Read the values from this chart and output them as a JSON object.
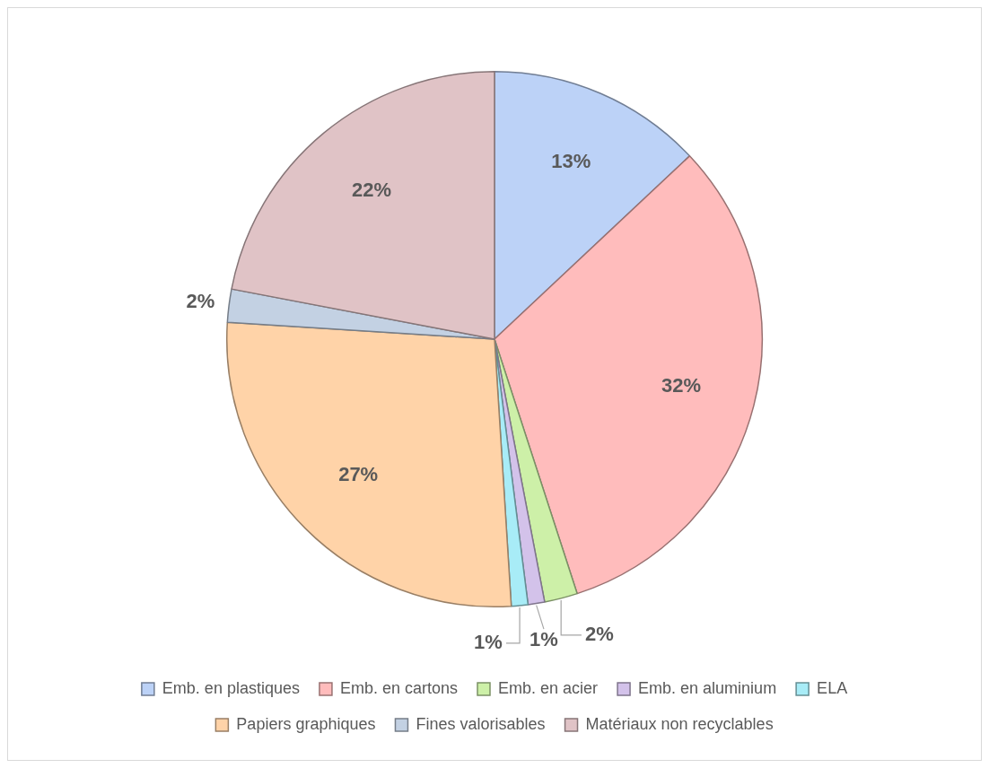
{
  "chart_data": {
    "type": "pie",
    "categories": [
      "Emb. en plastiques",
      "Emb. en cartons",
      "Emb. en acier",
      "Emb. en aluminium",
      "ELA",
      "Papiers graphiques",
      "Fines valorisables",
      "Matériaux non recyclables"
    ],
    "values": [
      13,
      32,
      2,
      1,
      1,
      27,
      2,
      22
    ],
    "colors": [
      "#bcd2f7",
      "#ffbcbc",
      "#cdf0a8",
      "#d3c2ea",
      "#a8ecf7",
      "#ffd3a8",
      "#c3d1e3",
      "#e0c3c6"
    ],
    "value_labels": [
      "13%",
      "32%",
      "2%",
      "1%",
      "1%",
      "27%",
      "2%",
      "22%"
    ],
    "legend": "bottom"
  }
}
